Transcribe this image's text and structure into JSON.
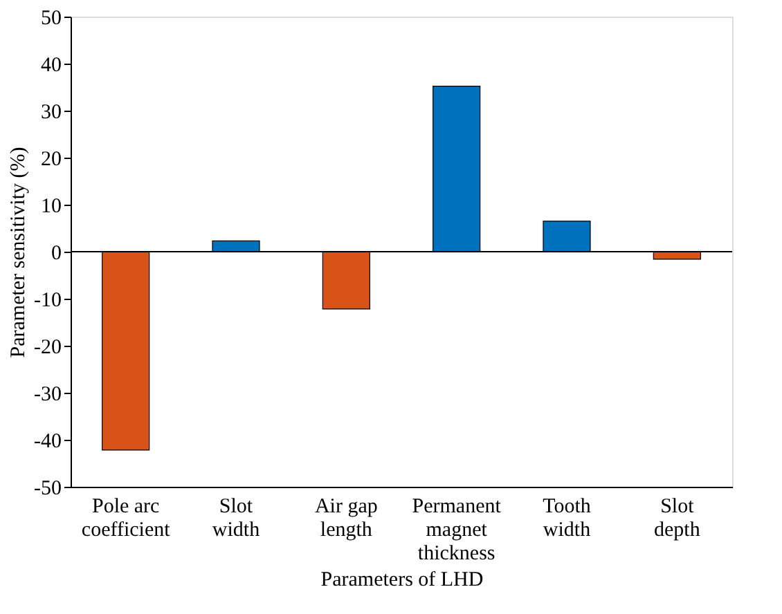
{
  "chart_data": {
    "type": "bar",
    "xlabel": "Parameters of LHD",
    "ylabel": "Parameter sensitivity (%)",
    "categories": [
      "Pole arc coefficient",
      "Slot width",
      "Air gap length",
      "Permanent magnet thickness",
      "Tooth width",
      "Slot depth"
    ],
    "values": [
      -42.2,
      2.3,
      -12.2,
      35.2,
      6.5,
      -1.6
    ],
    "colors": [
      "#d95319",
      "#0072bd",
      "#d95319",
      "#0072bd",
      "#0072bd",
      "#d95319"
    ],
    "ylim": [
      -50,
      50
    ],
    "yticks": [
      -50,
      -40,
      -30,
      -20,
      -10,
      0,
      10,
      20,
      30,
      40,
      50
    ],
    "ref_lines": [
      {
        "axis": "y",
        "value": 0,
        "color": "#000000"
      }
    ],
    "grid": false
  }
}
